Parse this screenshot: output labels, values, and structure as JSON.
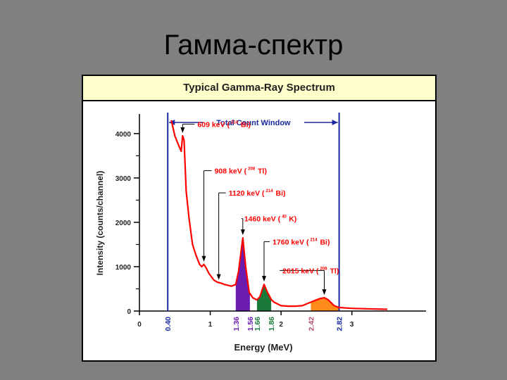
{
  "slide": {
    "title": "Гамма-спектр"
  },
  "colors": {
    "background": "#808080",
    "header_bg": "#ffffcc",
    "spectrum": "#ff0000",
    "label": "#ff0000",
    "window": "#1a2aa0",
    "axis": "#000000",
    "region_k": "#6a1bb0",
    "region_u": "#1a7a3a",
    "region_th": "#ff8c1a"
  },
  "chart_data": {
    "type": "line",
    "title": "Typical Gamma-Ray Spectrum",
    "xlabel": "Energy (MeV)",
    "ylabel": "Intensity (counts/channel)",
    "xlim": [
      0,
      3.5
    ],
    "ylim": [
      0,
      4600
    ],
    "x_ticks": [
      {
        "v": 0,
        "label": "0"
      },
      {
        "v": 1,
        "label": "1"
      },
      {
        "v": 2,
        "label": "2"
      },
      {
        "v": 3,
        "label": "3"
      }
    ],
    "y_ticks": [
      {
        "v": 0,
        "label": "0"
      },
      {
        "v": 1000,
        "label": "1000"
      },
      {
        "v": 2000,
        "label": "2000"
      },
      {
        "v": 3000,
        "label": "3000"
      },
      {
        "v": 4000,
        "label": "4000"
      }
    ],
    "y_minor_ticks": [
      500,
      1500,
      2500,
      3500
    ],
    "series": [
      {
        "x": [
          0.45,
          0.5,
          0.55,
          0.59,
          0.61,
          0.63,
          0.66,
          0.7,
          0.75,
          0.8,
          0.85,
          0.88,
          0.91,
          0.94,
          0.98,
          1.05,
          1.1,
          1.15,
          1.2,
          1.25,
          1.3,
          1.36,
          1.4,
          1.46,
          1.5,
          1.55,
          1.6,
          1.66,
          1.7,
          1.76,
          1.8,
          1.86,
          1.9,
          2.0,
          2.1,
          2.2,
          2.3,
          2.42,
          2.5,
          2.55,
          2.61,
          2.66,
          2.75,
          2.82,
          3.0,
          3.2,
          3.5
        ],
        "y": [
          4300,
          3950,
          3750,
          3600,
          3950,
          3850,
          2700,
          2100,
          1500,
          1250,
          1050,
          1000,
          1050,
          980,
          850,
          700,
          650,
          630,
          600,
          580,
          560,
          600,
          900,
          1650,
          1000,
          420,
          300,
          250,
          320,
          600,
          450,
          260,
          200,
          120,
          110,
          110,
          120,
          200,
          250,
          280,
          300,
          260,
          120,
          80,
          60,
          50,
          40
        ]
      }
    ],
    "regions": [
      {
        "x_start": 1.36,
        "x_end": 1.56,
        "color_key": "region_k"
      },
      {
        "x_start": 1.66,
        "x_end": 1.86,
        "color_key": "region_u"
      },
      {
        "x_start": 2.42,
        "x_end": 2.82,
        "color_key": "region_th"
      }
    ],
    "window": {
      "x_start": 0.4,
      "x_end": 2.82,
      "label": "Total  Count  Window"
    },
    "vertical_labels": [
      {
        "x": 0.4,
        "label": "0.40",
        "color": "#1a2aa0"
      },
      {
        "x": 1.36,
        "label": "1.36",
        "color": "#6a1bb0"
      },
      {
        "x": 1.56,
        "label": "1.56",
        "color": "#6a1bb0"
      },
      {
        "x": 1.66,
        "label": "1.66",
        "color": "#1a7a3a"
      },
      {
        "x": 1.86,
        "label": "1.86",
        "color": "#1a7a3a"
      },
      {
        "x": 2.42,
        "label": "2.42",
        "color": "#b04a6a"
      },
      {
        "x": 2.82,
        "label": "2.82",
        "color": "#1a2aa0"
      }
    ],
    "annotations": [
      {
        "text": "609 keV (",
        "iso_mass": "214",
        "iso_el": "Bi)",
        "text_x": 0.82,
        "text_y": 4150,
        "peak_x": 0.61,
        "peak_y": 3950,
        "line_x": 0.61
      },
      {
        "text": "908 keV (",
        "iso_mass": "208",
        "iso_el": "Tl)",
        "text_x": 1.06,
        "text_y": 3100,
        "peak_x": 0.91,
        "peak_y": 1050,
        "line_x": 0.91
      },
      {
        "text": "1120 keV (",
        "iso_mass": "214",
        "iso_el": "Bi)",
        "text_x": 1.26,
        "text_y": 2600,
        "peak_x": 1.12,
        "peak_y": 640,
        "line_x": 1.12
      },
      {
        "text": "1460 keV (",
        "iso_mass": "40",
        "iso_el": "K)",
        "text_x": 1.48,
        "text_y": 2020,
        "peak_x": 1.46,
        "peak_y": 1650,
        "line_x": 1.46
      },
      {
        "text": "1760 keV (",
        "iso_mass": "214",
        "iso_el": "Bi)",
        "text_x": 1.88,
        "text_y": 1500,
        "peak_x": 1.76,
        "peak_y": 600,
        "line_x": 1.76
      },
      {
        "text": "2615 keV (",
        "iso_mass": "208",
        "iso_el": "Tl)",
        "text_x": 2.02,
        "text_y": 850,
        "peak_x": 2.61,
        "peak_y": 300,
        "line_x": 2.61
      }
    ]
  }
}
